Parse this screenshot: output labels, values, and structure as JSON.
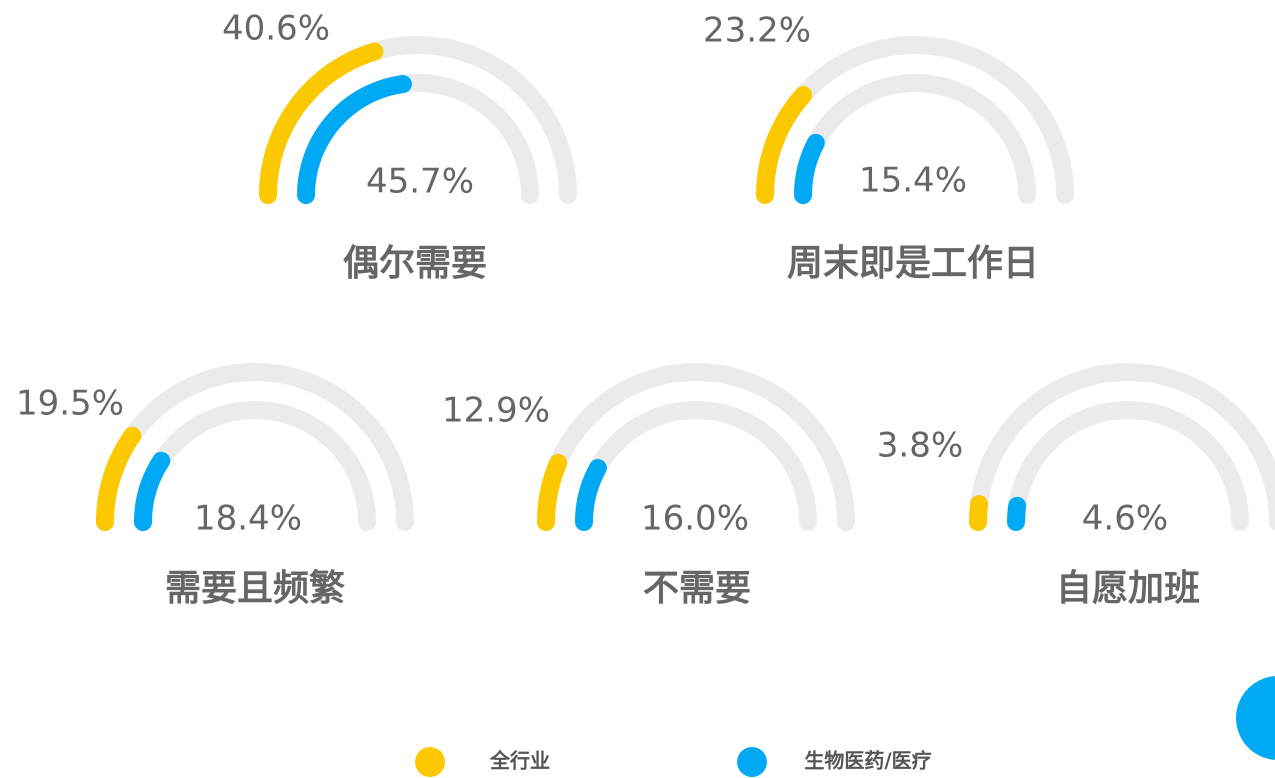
{
  "chart_data": {
    "type": "gauge",
    "categories": [
      "偶尔需要",
      "周末即是工作日",
      "需要且频繁",
      "不需要",
      "自愿加班"
    ],
    "ylim": [
      0,
      100
    ],
    "series": [
      {
        "name": "全行业",
        "color": "#fcc800",
        "values": [
          40.6,
          23.2,
          19.5,
          12.9,
          3.8
        ],
        "value_labels": [
          "40.6%",
          "23.2%",
          "19.5%",
          "12.9%",
          "3.8%"
        ]
      },
      {
        "name": "生物医药/医疗",
        "color": "#00a9f4",
        "values": [
          45.7,
          15.4,
          18.4,
          16.0,
          4.6
        ],
        "value_labels": [
          "45.7%",
          "15.4%",
          "18.4%",
          "16.0%",
          "4.6%"
        ]
      }
    ]
  }
}
